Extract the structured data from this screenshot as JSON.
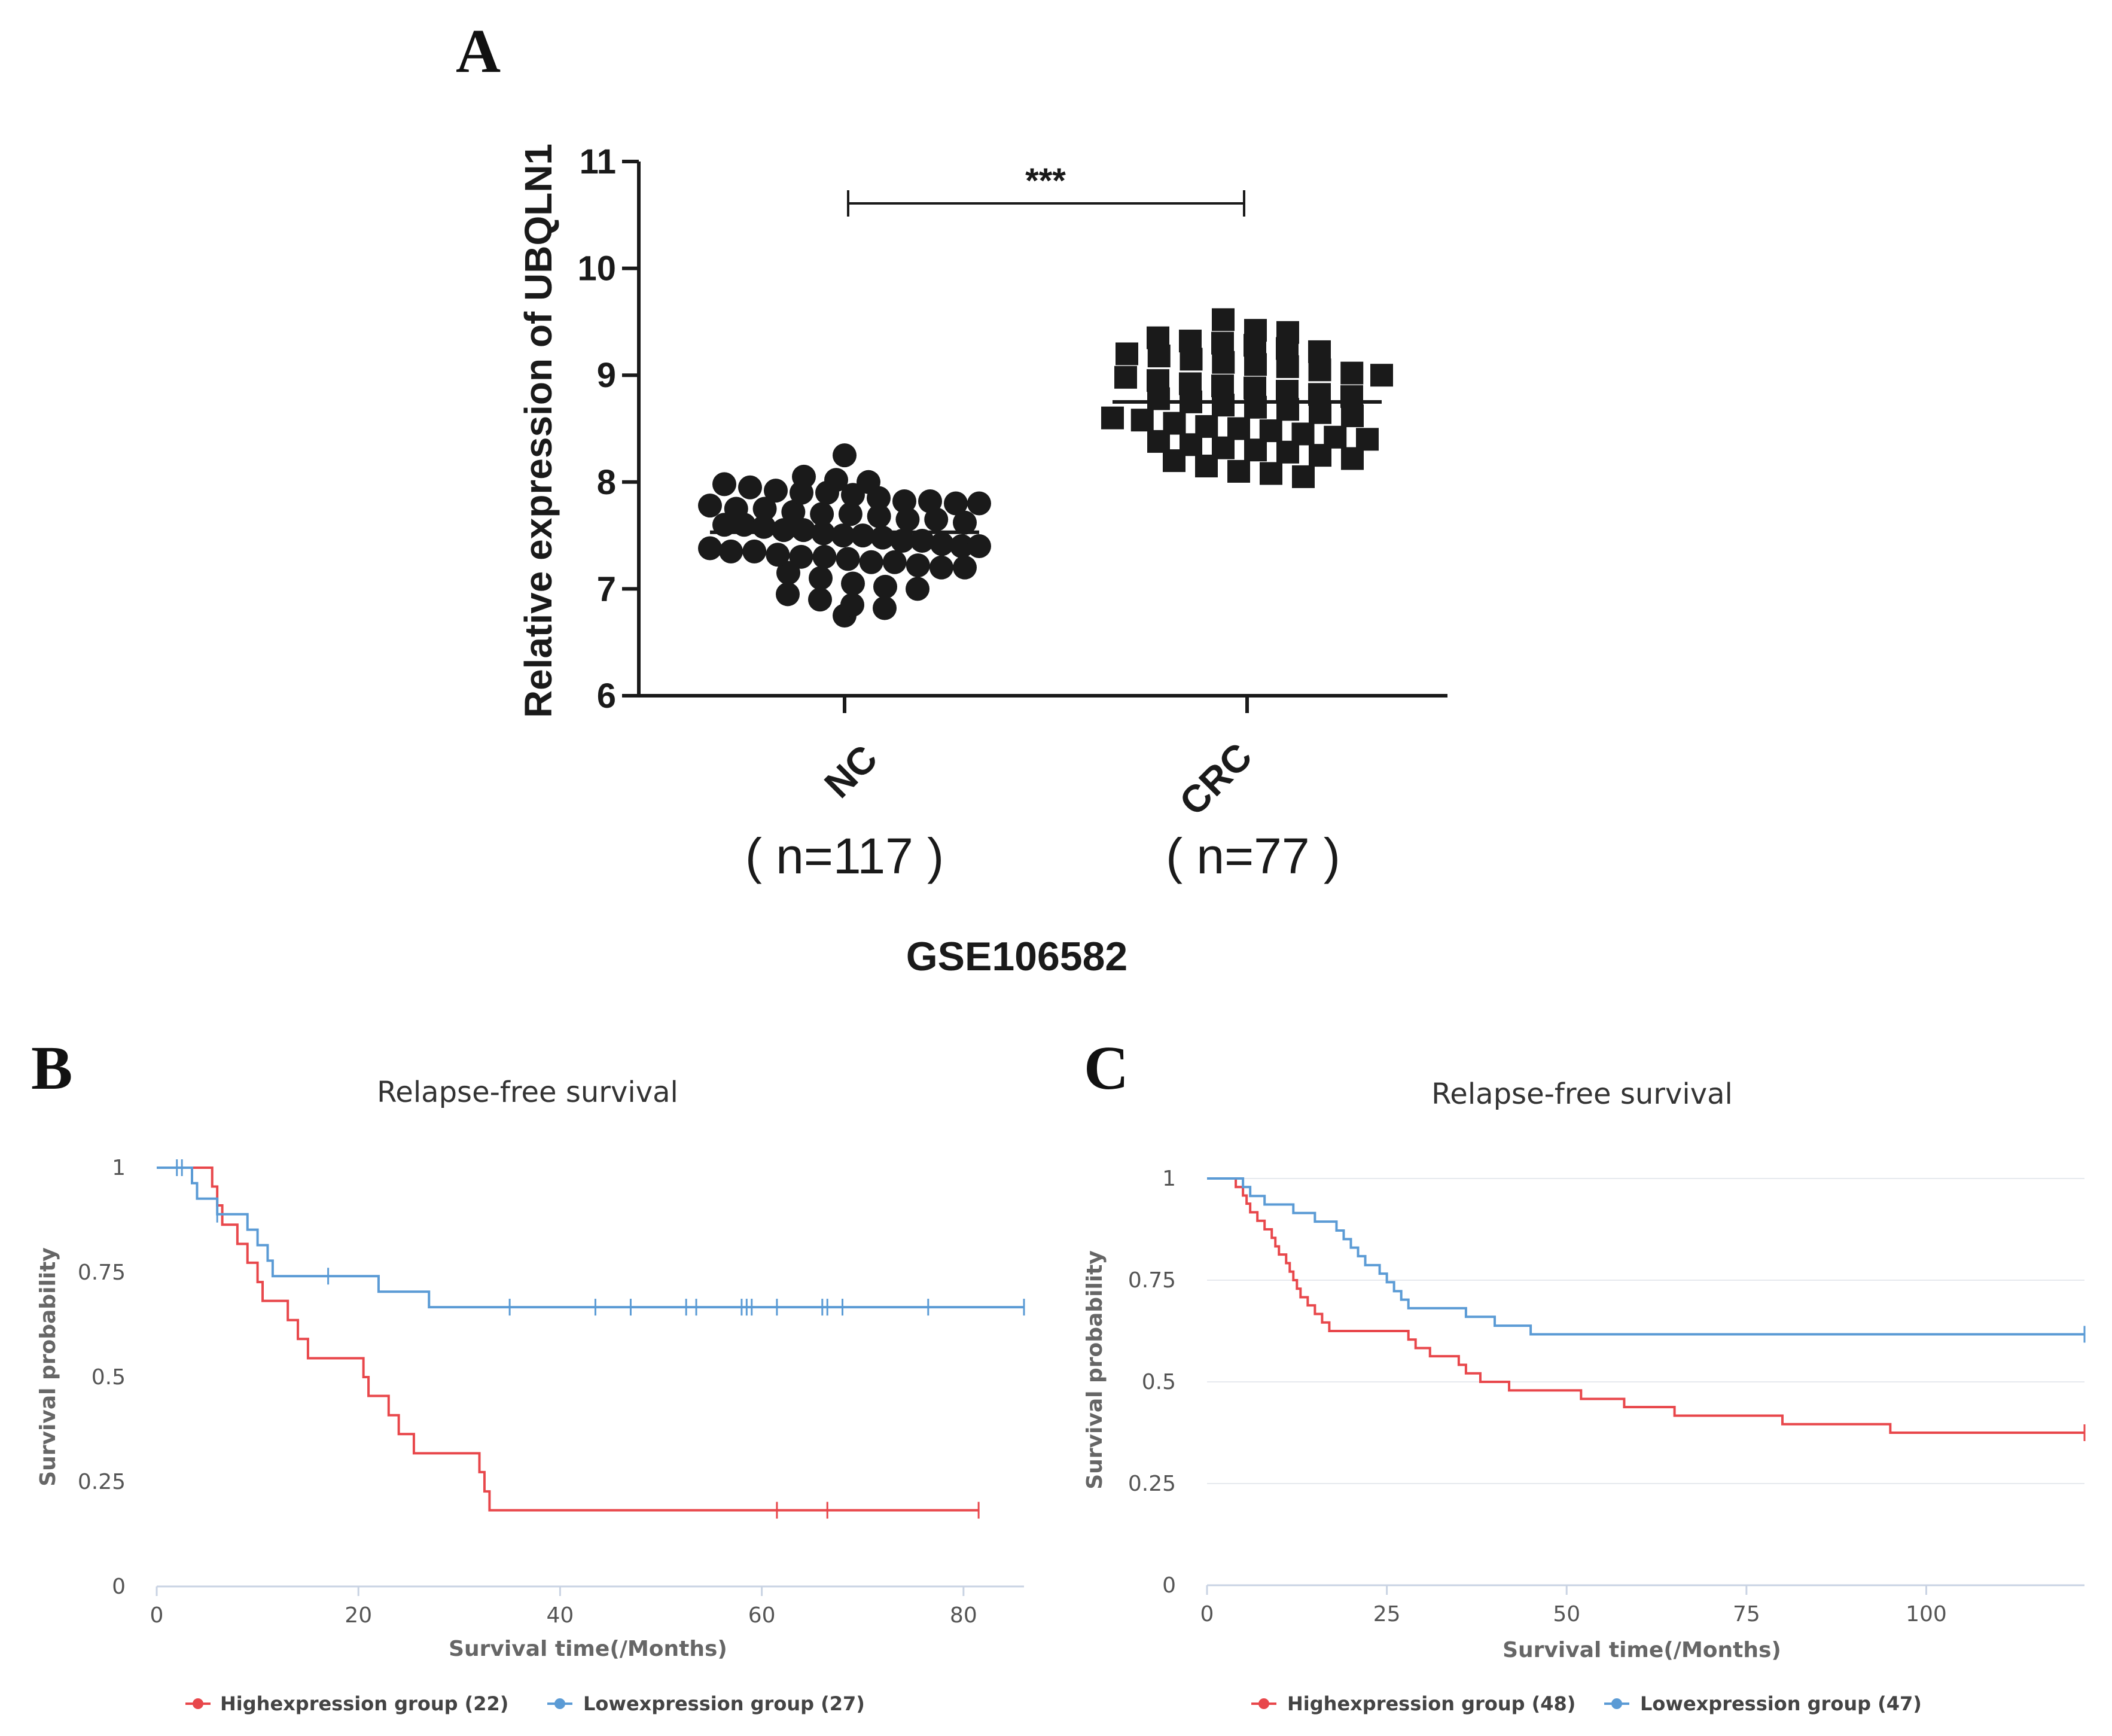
{
  "panels": {
    "A": {
      "letter": "A"
    },
    "B": {
      "letter": "B"
    },
    "C": {
      "letter": "C"
    }
  },
  "chart_data": [
    {
      "panel": "A",
      "type": "scatter",
      "subtype": "dot-plot-with-mean",
      "title": "",
      "xlabel": "GSE106582",
      "ylabel": "Relative expression of UBQLN1",
      "ylim": [
        6,
        11
      ],
      "yticks": [
        "6",
        "7",
        "8",
        "9",
        "10",
        "11"
      ],
      "categories": [
        "NC",
        "CRC"
      ],
      "sample_sizes": [
        "( n=117 )",
        "( n=77 )"
      ],
      "means": [
        7.53,
        8.75
      ],
      "significance": "***",
      "series": [
        {
          "name": "NC",
          "marker": "circle",
          "values": [
            8.25,
            8.05,
            8.02,
            8.0,
            7.98,
            7.95,
            7.92,
            7.9,
            7.9,
            7.88,
            7.85,
            7.82,
            7.82,
            7.8,
            7.8,
            7.78,
            7.75,
            7.75,
            7.72,
            7.7,
            7.7,
            7.68,
            7.65,
            7.65,
            7.62,
            7.6,
            7.6,
            7.58,
            7.55,
            7.55,
            7.52,
            7.5,
            7.5,
            7.48,
            7.45,
            7.45,
            7.42,
            7.4,
            7.4,
            7.38,
            7.35,
            7.35,
            7.32,
            7.3,
            7.3,
            7.28,
            7.25,
            7.25,
            7.22,
            7.2,
            7.2,
            7.15,
            7.1,
            7.05,
            7.02,
            7.0,
            6.95,
            6.9,
            6.85,
            6.82,
            6.75
          ]
        },
        {
          "name": "CRC",
          "marker": "square",
          "values": [
            9.52,
            9.42,
            9.4,
            9.35,
            9.32,
            9.3,
            9.28,
            9.25,
            9.22,
            9.2,
            9.18,
            9.15,
            9.12,
            9.1,
            9.08,
            9.05,
            9.02,
            9.0,
            8.98,
            8.95,
            8.92,
            8.9,
            8.88,
            8.85,
            8.82,
            8.8,
            8.78,
            8.75,
            8.72,
            8.7,
            8.68,
            8.65,
            8.62,
            8.6,
            8.58,
            8.55,
            8.52,
            8.5,
            8.48,
            8.45,
            8.42,
            8.4,
            8.38,
            8.35,
            8.32,
            8.3,
            8.28,
            8.25,
            8.22,
            8.2,
            8.15,
            8.1,
            8.08,
            8.05
          ]
        }
      ]
    },
    {
      "panel": "B",
      "type": "line",
      "subtype": "step-survival",
      "title": "Relapse-free survival",
      "xlabel": "Survival time(/Months)",
      "ylabel": "Survival probability",
      "xlim": [
        0,
        86
      ],
      "ylim": [
        0,
        1
      ],
      "xticks": [
        "0",
        "20",
        "40",
        "60",
        "80"
      ],
      "yticks": [
        "0",
        "0.25",
        "0.5",
        "0.75",
        "1"
      ],
      "grid": false,
      "series": [
        {
          "name": "Highexpression group (22)",
          "color": "#e8474b",
          "steps": [
            [
              0,
              1
            ],
            [
              5.5,
              0.955
            ],
            [
              6,
              0.91
            ],
            [
              6.5,
              0.864
            ],
            [
              8,
              0.818
            ],
            [
              9,
              0.773
            ],
            [
              10,
              0.727
            ],
            [
              10.5,
              0.682
            ],
            [
              13,
              0.636
            ],
            [
              14,
              0.591
            ],
            [
              15,
              0.545
            ],
            [
              20.5,
              0.5
            ],
            [
              21,
              0.455
            ],
            [
              23,
              0.409
            ],
            [
              24,
              0.364
            ],
            [
              25.5,
              0.318
            ],
            [
              32,
              0.273
            ],
            [
              32.5,
              0.227
            ],
            [
              33,
              0.182
            ],
            [
              81.5,
              0.182
            ]
          ],
          "censor": [
            61.5,
            66.5,
            81.5
          ]
        },
        {
          "name": "Lowexpression group (27)",
          "color": "#5b9bd5",
          "steps": [
            [
              0,
              1
            ],
            [
              3.5,
              0.963
            ],
            [
              4,
              0.926
            ],
            [
              6,
              0.889
            ],
            [
              9,
              0.852
            ],
            [
              10,
              0.815
            ],
            [
              11,
              0.778
            ],
            [
              11.5,
              0.741
            ],
            [
              22,
              0.704
            ],
            [
              27,
              0.667
            ],
            [
              86,
              0.667
            ]
          ],
          "censor": [
            2,
            2.5,
            6,
            17,
            35,
            43.5,
            47,
            52.5,
            53.5,
            58,
            58.5,
            59,
            61.5,
            66,
            66.5,
            68,
            76.5,
            86
          ]
        }
      ]
    },
    {
      "panel": "C",
      "type": "line",
      "subtype": "step-survival",
      "title": "Relapse-free survival",
      "xlabel": "Survival time(/Months)",
      "ylabel": "Survival probability",
      "xlim": [
        0,
        122
      ],
      "ylim": [
        0,
        1
      ],
      "xticks": [
        "0",
        "25",
        "50",
        "75",
        "100"
      ],
      "yticks": [
        "0",
        "0.25",
        "0.5",
        "0.75",
        "1"
      ],
      "grid": true,
      "series": [
        {
          "name": "Highexpression group (48)",
          "color": "#e8474b",
          "steps": [
            [
              0,
              1
            ],
            [
              4,
              0.979
            ],
            [
              5,
              0.958
            ],
            [
              5.5,
              0.938
            ],
            [
              6,
              0.917
            ],
            [
              7,
              0.896
            ],
            [
              8,
              0.875
            ],
            [
              9,
              0.854
            ],
            [
              9.5,
              0.833
            ],
            [
              10,
              0.813
            ],
            [
              11,
              0.792
            ],
            [
              11.5,
              0.771
            ],
            [
              12,
              0.75
            ],
            [
              12.5,
              0.729
            ],
            [
              13,
              0.708
            ],
            [
              14,
              0.688
            ],
            [
              15,
              0.667
            ],
            [
              16,
              0.646
            ],
            [
              17,
              0.625
            ],
            [
              28,
              0.604
            ],
            [
              29,
              0.583
            ],
            [
              31,
              0.563
            ],
            [
              35,
              0.542
            ],
            [
              36,
              0.521
            ],
            [
              38,
              0.5
            ],
            [
              42,
              0.479
            ],
            [
              52,
              0.458
            ],
            [
              58,
              0.438
            ],
            [
              65,
              0.417
            ],
            [
              80,
              0.396
            ],
            [
              95,
              0.375
            ],
            [
              122,
              0.375
            ]
          ],
          "censor": [
            122
          ]
        },
        {
          "name": "Lowexpression group (47)",
          "color": "#5b9bd5",
          "steps": [
            [
              0,
              1
            ],
            [
              5,
              0.979
            ],
            [
              6,
              0.957
            ],
            [
              8,
              0.936
            ],
            [
              12,
              0.915
            ],
            [
              15,
              0.894
            ],
            [
              18,
              0.872
            ],
            [
              19,
              0.851
            ],
            [
              20,
              0.83
            ],
            [
              21,
              0.809
            ],
            [
              22,
              0.787
            ],
            [
              24,
              0.766
            ],
            [
              25,
              0.745
            ],
            [
              26,
              0.723
            ],
            [
              27,
              0.702
            ],
            [
              28,
              0.681
            ],
            [
              36,
              0.66
            ],
            [
              40,
              0.638
            ],
            [
              45,
              0.617
            ],
            [
              122,
              0.617
            ]
          ],
          "censor": [
            122
          ]
        }
      ]
    }
  ]
}
